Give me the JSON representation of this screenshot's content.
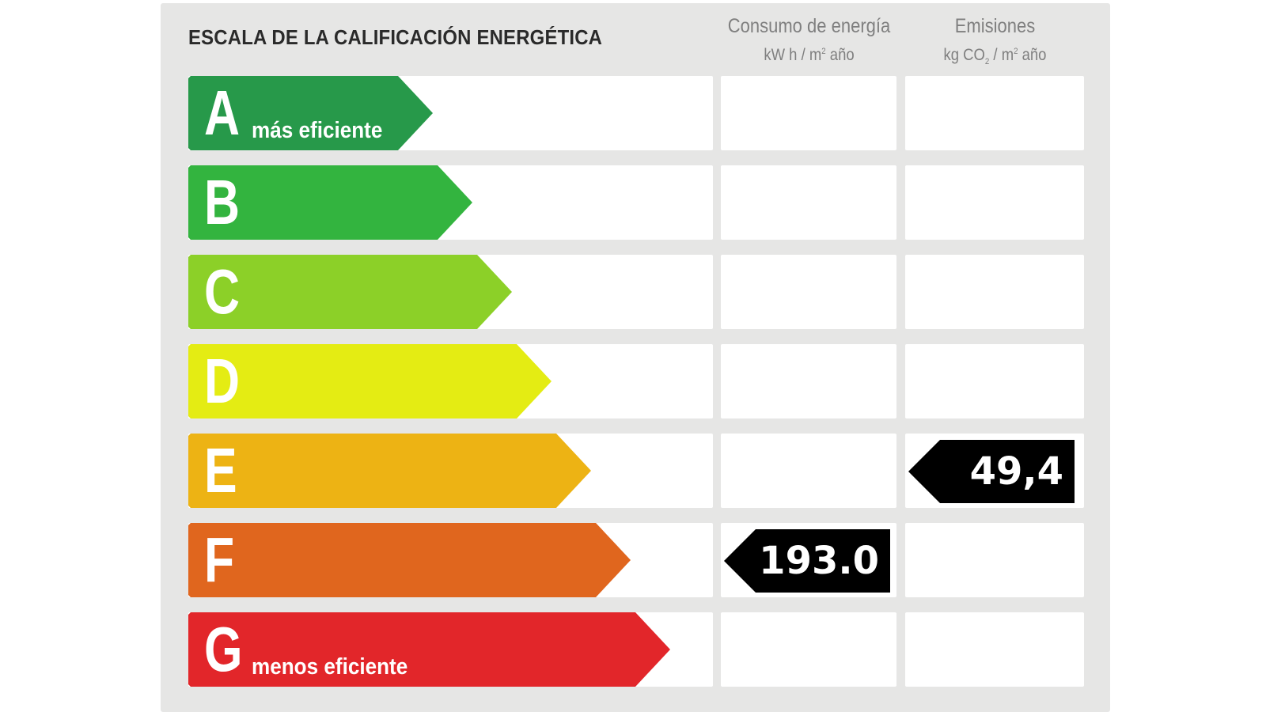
{
  "chart_data": {
    "type": "table",
    "title": "ESCALA DE LA CALIFICACIÓN ENERGÉTICA",
    "columns": [
      {
        "key": "consumo",
        "title": "Consumo de energía",
        "unit_prefix": "kW h / m",
        "unit_sup": "2",
        "unit_suffix": " año"
      },
      {
        "key": "emisiones",
        "title": "Emisiones",
        "unit_prefix": "kg CO",
        "unit_sub": "2",
        "unit_mid": " / m",
        "unit_sup": "2",
        "unit_suffix": " año"
      }
    ],
    "bands": [
      {
        "letter": "A",
        "label": "más eficiente",
        "color": "#27994a"
      },
      {
        "letter": "B",
        "label": "",
        "color": "#33b43f"
      },
      {
        "letter": "C",
        "label": "",
        "color": "#8cd028"
      },
      {
        "letter": "D",
        "label": "",
        "color": "#e4ec13"
      },
      {
        "letter": "E",
        "label": "",
        "color": "#edb314"
      },
      {
        "letter": "F",
        "label": "",
        "color": "#e0661e"
      },
      {
        "letter": "G",
        "label": "menos eficiente",
        "color": "#e2262a"
      }
    ],
    "ratings": [
      {
        "column": "consumo",
        "band": "F",
        "value": "193.0"
      },
      {
        "column": "emisiones",
        "band": "E",
        "value": "49,4"
      }
    ]
  }
}
